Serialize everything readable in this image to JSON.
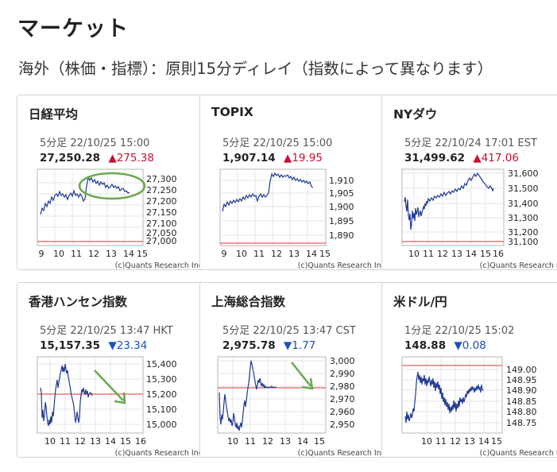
{
  "header": {
    "title": "マーケット",
    "subtitle": "海外（株価・指標）：原則15分ディレイ（指数によって異なります）"
  },
  "credit": "(c)Quants Research Inc.",
  "colors": {
    "up": "#c8102e",
    "down": "#1a4fc0",
    "line": "#1f3a93",
    "ref_line": "#e23030",
    "annotation": "#6aa84f"
  },
  "cards": [
    {
      "title": "日経平均",
      "meta": "5分足 22/10/25 15:00",
      "price": "27,250.28",
      "arrow": "▲",
      "change": "275.38",
      "direction": "up",
      "y_ticks": [
        "27,300",
        "27,250",
        "27,200",
        "27,150",
        "27,100",
        "27,050",
        "27,000"
      ],
      "x_ticks": [
        "9",
        "10",
        "11",
        "12",
        "13",
        "14",
        "15"
      ],
      "annotation": "ellipse"
    },
    {
      "title": "TOPIX",
      "meta": "5分足 22/10/25 15:00",
      "price": "1,907.14",
      "arrow": "▲",
      "change": "19.95",
      "direction": "up",
      "y_ticks": [
        "1,910",
        "1,905",
        "1,900",
        "1,895",
        "1,890"
      ],
      "x_ticks": [
        "9",
        "10",
        "11",
        "12",
        "13",
        "14",
        "15"
      ],
      "annotation": "none"
    },
    {
      "title": "NYダウ",
      "meta": "5分足 22/10/24 17:01 EST",
      "price": "31,499.62",
      "arrow": "▲",
      "change": "417.06",
      "direction": "up",
      "y_ticks": [
        "31,600",
        "31,500",
        "31,400",
        "31,300",
        "31,200",
        "31,100"
      ],
      "x_ticks": [
        "10",
        "11",
        "12",
        "13",
        "14",
        "15",
        "16"
      ],
      "annotation": "none"
    },
    {
      "title": "香港ハンセン指数",
      "meta": "5分足 22/10/25 13:47 HKT",
      "price": "15,157.35",
      "arrow": "▼",
      "change": "23.34",
      "direction": "down",
      "y_ticks": [
        "15,400",
        "15,300",
        "15,200",
        "15,100",
        "15,000"
      ],
      "x_ticks": [
        "10",
        "11",
        "12",
        "13",
        "14",
        "15",
        "16"
      ],
      "annotation": "arrow"
    },
    {
      "title": "上海総合指数",
      "meta": "5分足 22/10/25 13:47 CST",
      "price": "2,975.78",
      "arrow": "▼",
      "change": "1.77",
      "direction": "down",
      "y_ticks": [
        "3,000",
        "2,990",
        "2,980",
        "2,970",
        "2,960",
        "2,950"
      ],
      "x_ticks": [
        "10",
        "11",
        "12",
        "13",
        "14",
        "15"
      ],
      "annotation": "arrow"
    },
    {
      "title": "米ドル/円",
      "meta": "1分足 22/10/25 15:02",
      "price": "148.88",
      "arrow": "▼",
      "change": "0.08",
      "direction": "down",
      "y_ticks": [
        "149.00",
        "148.95",
        "148.90",
        "148.85",
        "148.80",
        "148.75"
      ],
      "x_ticks": [
        "10",
        "11",
        "12",
        "13",
        "14",
        "15"
      ],
      "annotation": "none"
    }
  ]
}
